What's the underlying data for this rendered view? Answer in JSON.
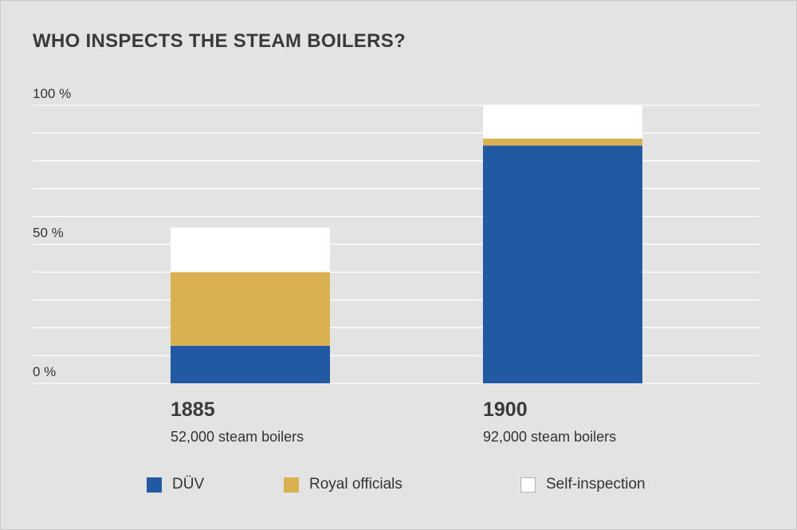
{
  "title": "WHO INSPECTS THE STEAM BOILERS?",
  "colors": {
    "DUV": "#2159a3",
    "royal": "#d9b150",
    "self": "#ffffff",
    "background": "#e3e3e3"
  },
  "legend": [
    {
      "label": "DÜV",
      "color": "#2159a3"
    },
    {
      "label": "Royal officials",
      "color": "#d9b150"
    },
    {
      "label": "Self-inspection",
      "color": "#ffffff"
    }
  ],
  "chart_data": {
    "type": "bar",
    "stacked": true,
    "title": "WHO INSPECTS THE STEAM BOILERS?",
    "categories": [
      "1885",
      "1900"
    ],
    "category_subtitles": [
      "52,000 steam boilers",
      "92,000 steam boilers"
    ],
    "series": [
      {
        "name": "DÜV",
        "values": [
          13.5,
          85.5
        ]
      },
      {
        "name": "Royal officials",
        "values": [
          26.5,
          2.5
        ]
      },
      {
        "name": "Self-inspection",
        "values": [
          16,
          12
        ]
      }
    ],
    "ylim": [
      0,
      100
    ],
    "y_ticks": [
      0,
      50,
      100
    ],
    "y_tick_labels": [
      "0 %",
      "50 %",
      "100 %"
    ],
    "grid_step": 10,
    "grid": true,
    "legend_position": "bottom"
  }
}
